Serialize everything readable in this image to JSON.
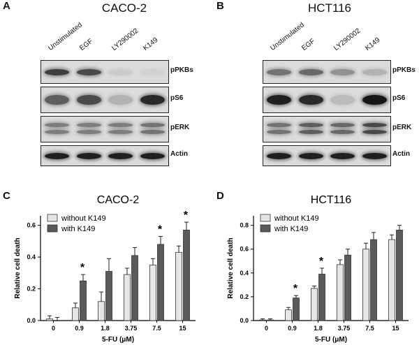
{
  "panels": {
    "A": {
      "letter": "A",
      "cell_line": "CACO-2"
    },
    "B": {
      "letter": "B",
      "cell_line": "HCT116"
    },
    "C": {
      "letter": "C"
    },
    "D": {
      "letter": "D"
    }
  },
  "blots": {
    "lanes": [
      "Unstimulated",
      "EGF",
      "LY290002",
      "K149"
    ],
    "rows": [
      "pPKBs",
      "pS6",
      "pERK",
      "Actin"
    ],
    "A": {
      "pPKBs": [
        0.75,
        0.7,
        0.08,
        0.05
      ],
      "pS6": [
        0.6,
        0.7,
        0.2,
        0.85
      ],
      "pERK": [
        0.45,
        0.45,
        0.45,
        0.5
      ],
      "Actin": [
        0.9,
        0.9,
        0.9,
        0.9
      ]
    },
    "B": {
      "pPKBs": [
        0.5,
        0.55,
        0.35,
        0.2
      ],
      "pS6": [
        0.9,
        0.85,
        0.15,
        0.95
      ],
      "pERK": [
        0.5,
        0.6,
        0.55,
        0.7
      ],
      "Actin": [
        0.9,
        0.9,
        0.9,
        0.9
      ]
    }
  },
  "chart_data": [
    {
      "type": "bar",
      "title": "CACO-2",
      "xlabel": "5-FU (μM)",
      "ylabel": "Relative cell death",
      "ylim": [
        0,
        0.66
      ],
      "yticks": [
        "0.0",
        "0.2",
        "0.4",
        "0.6"
      ],
      "ytick_values": [
        0,
        0.2,
        0.4,
        0.6
      ],
      "categories": [
        "0",
        "0.9",
        "1.8",
        "3.75",
        "7.5",
        "15"
      ],
      "series": [
        {
          "name": "without K149",
          "color": "#e6e6e6",
          "values": [
            0.01,
            0.08,
            0.12,
            0.29,
            0.35,
            0.43
          ],
          "errors": [
            0.02,
            0.03,
            0.06,
            0.04,
            0.04,
            0.04
          ]
        },
        {
          "name": "with K149",
          "color": "#5a5a5a",
          "values": [
            0.0,
            0.25,
            0.31,
            0.41,
            0.48,
            0.57
          ],
          "errors": [
            0.02,
            0.04,
            0.08,
            0.05,
            0.05,
            0.05
          ]
        }
      ],
      "significance": [
        false,
        true,
        false,
        false,
        true,
        true
      ],
      "star": "*",
      "legend": "top-left"
    },
    {
      "type": "bar",
      "title": "HCT116",
      "xlabel": "5-FU (μM)",
      "ylabel": "Relative cell death",
      "ylim": [
        0,
        0.88
      ],
      "yticks": [
        "0.0",
        "0.2",
        "0.4",
        "0.6",
        "0.8"
      ],
      "ytick_values": [
        0,
        0.2,
        0.4,
        0.6,
        0.8
      ],
      "categories": [
        "0",
        "0.9",
        "1.8",
        "3.75",
        "7.5",
        "15"
      ],
      "series": [
        {
          "name": "without K149",
          "color": "#e6e6e6",
          "values": [
            0.005,
            0.09,
            0.27,
            0.47,
            0.6,
            0.68
          ],
          "errors": [
            0.01,
            0.02,
            0.02,
            0.04,
            0.05,
            0.04
          ]
        },
        {
          "name": "with K149",
          "color": "#5a5a5a",
          "values": [
            0.005,
            0.19,
            0.39,
            0.55,
            0.68,
            0.76
          ],
          "errors": [
            0.01,
            0.02,
            0.05,
            0.05,
            0.06,
            0.04
          ]
        }
      ],
      "significance": [
        false,
        true,
        true,
        false,
        false,
        false
      ],
      "star": "*",
      "legend": "top-left"
    }
  ]
}
